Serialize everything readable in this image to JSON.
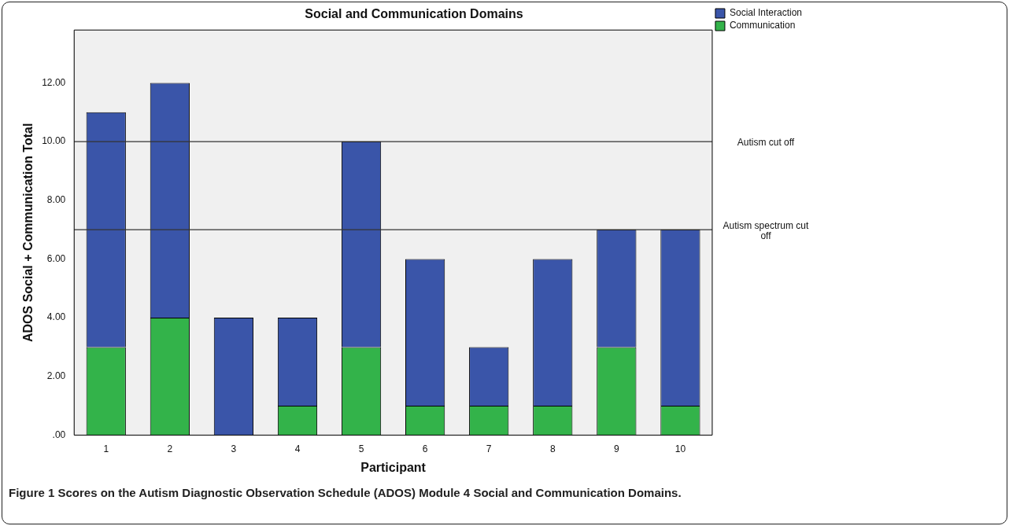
{
  "chart_data": {
    "type": "bar",
    "title": "Social and Communication Domains",
    "xlabel": "Participant",
    "ylabel": "ADOS Social + Communication Total",
    "categories": [
      "1",
      "2",
      "3",
      "4",
      "5",
      "6",
      "7",
      "8",
      "9",
      "10"
    ],
    "stacked": true,
    "series": [
      {
        "name": "Communication",
        "color": "#33b34a",
        "values": [
          3,
          4,
          0,
          1,
          3,
          1,
          1,
          1,
          3,
          1
        ]
      },
      {
        "name": "Social Interaction",
        "color": "#3a55a9",
        "values": [
          8,
          8,
          4,
          3,
          7,
          5,
          2,
          5,
          4,
          6
        ]
      }
    ],
    "ylim": [
      0,
      13.8
    ],
    "yticks": [
      {
        "value": 0,
        "label": ".00"
      },
      {
        "value": 2,
        "label": "2.00"
      },
      {
        "value": 4,
        "label": "4.00"
      },
      {
        "value": 6,
        "label": "6.00"
      },
      {
        "value": 8,
        "label": "8.00"
      },
      {
        "value": 10,
        "label": "10.00"
      },
      {
        "value": 12,
        "label": "12.00"
      }
    ],
    "ref_lines": [
      {
        "axis": "y",
        "value": 10,
        "label": "Autism cut off",
        "color": "#333333"
      },
      {
        "axis": "y",
        "value": 7,
        "label": "Autism spectrum cut off",
        "color": "#333333"
      }
    ],
    "legend": "top right",
    "annotations": [
      "Figure 1 Scores on the Autism Diagnostic Observation Schedule (ADOS) Module 4 Social and Communication Domains."
    ]
  }
}
